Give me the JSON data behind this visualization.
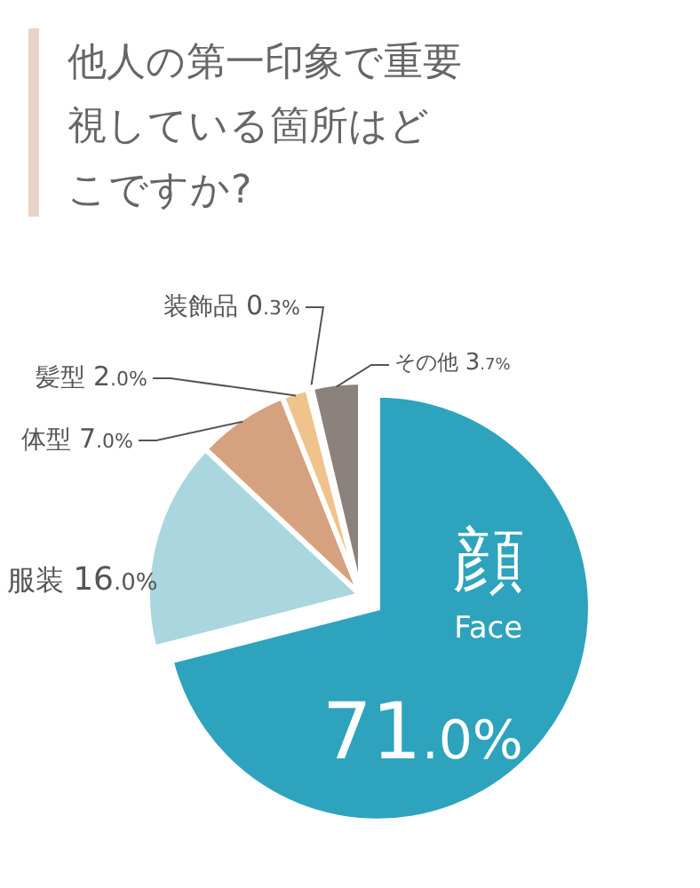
{
  "chart_data": {
    "type": "pie",
    "title": "他人の第一印象で重要視している箇所はどこですか?",
    "categories": [
      "顔\nFace",
      "服装",
      "体型",
      "髪型",
      "装飾品",
      "その他"
    ],
    "values": [
      71.0,
      16.0,
      7.0,
      2.0,
      0.3,
      3.7
    ],
    "value_labels": [
      "71.0%",
      "16.0%",
      "7.0%",
      "2.0%",
      "0.3%",
      "3.7%"
    ],
    "colors": [
      "#2ea3bd",
      "#a9d6df",
      "#d5a17f",
      "#efc38b",
      "#8e6b5b",
      "#8b817d"
    ]
  }
}
